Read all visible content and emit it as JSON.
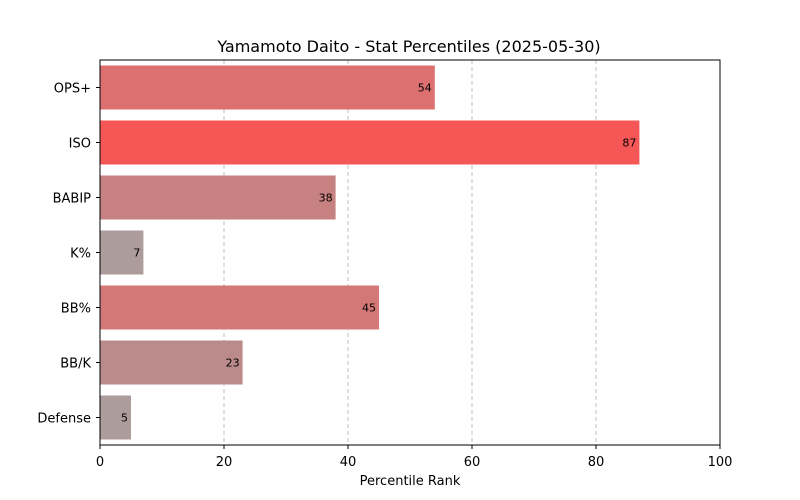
{
  "chart_data": {
    "type": "bar",
    "orientation": "horizontal",
    "title": "Yamamoto Daito - Stat Percentiles (2025-05-30)",
    "xlabel": "Percentile Rank",
    "ylabel": "",
    "xlim": [
      0,
      100
    ],
    "xticks": [
      0,
      20,
      40,
      60,
      80,
      100
    ],
    "grid": "x-dashed",
    "categories": [
      "OPS+",
      "ISO",
      "BABIP",
      "K%",
      "BB%",
      "BB/K",
      "Defense"
    ],
    "values": [
      54,
      87,
      38,
      7,
      45,
      23,
      5
    ],
    "colors": [
      "#dc7070",
      "#f55656",
      "#c78181",
      "#ad9c9c",
      "#d37777",
      "#bb8b8b",
      "#ad9c9c"
    ]
  }
}
